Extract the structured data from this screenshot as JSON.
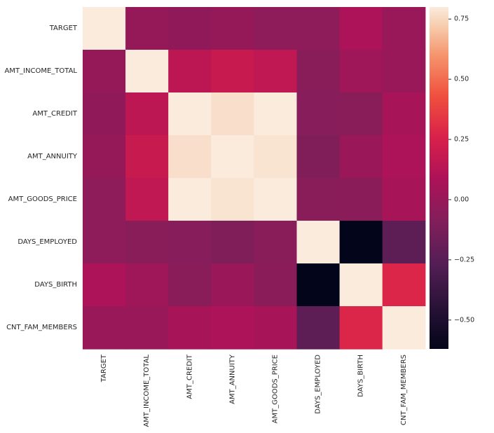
{
  "chart_data": {
    "type": "heatmap",
    "title": "",
    "xlabel": "",
    "ylabel": "",
    "rows": [
      "TARGET",
      "AMT_INCOME_TOTAL",
      "AMT_CREDIT",
      "AMT_ANNUITY",
      "AMT_GOODS_PRICE",
      "DAYS_EMPLOYED",
      "DAYS_BIRTH",
      "CNT_FAM_MEMBERS"
    ],
    "columns": [
      "TARGET",
      "AMT_INCOME_TOTAL",
      "AMT_CREDIT",
      "AMT_ANNUITY",
      "AMT_GOODS_PRICE",
      "DAYS_EMPLOYED",
      "DAYS_BIRTH",
      "CNT_FAM_MEMBERS"
    ],
    "values": [
      [
        1.0,
        -0.01,
        -0.03,
        -0.01,
        -0.04,
        -0.04,
        0.08,
        0.0
      ],
      [
        -0.01,
        1.0,
        0.15,
        0.19,
        0.16,
        -0.06,
        0.03,
        0.0
      ],
      [
        -0.03,
        0.15,
        1.0,
        0.77,
        0.99,
        -0.07,
        -0.06,
        0.06
      ],
      [
        -0.01,
        0.19,
        0.77,
        1.0,
        0.78,
        -0.1,
        0.01,
        0.08
      ],
      [
        -0.04,
        0.16,
        0.99,
        0.78,
        1.0,
        -0.06,
        -0.05,
        0.06
      ],
      [
        -0.04,
        -0.06,
        -0.07,
        -0.1,
        -0.06,
        1.0,
        -0.62,
        -0.23
      ],
      [
        0.08,
        0.03,
        -0.06,
        0.01,
        -0.05,
        -0.62,
        1.0,
        0.28
      ],
      [
        0.0,
        0.0,
        0.06,
        0.08,
        0.06,
        -0.23,
        0.28,
        1.0
      ]
    ],
    "vmin": -0.62,
    "vmax": 0.8,
    "colormap": "rocket",
    "colorbar_ticks": [
      0.75,
      0.5,
      0.25,
      0.0,
      -0.25,
      -0.5
    ],
    "colorbar_tick_labels": [
      "0.75",
      "0.50",
      "0.25",
      "0.00",
      "−0.25",
      "−0.50"
    ],
    "grid": false,
    "legend": "colorbar-right"
  }
}
